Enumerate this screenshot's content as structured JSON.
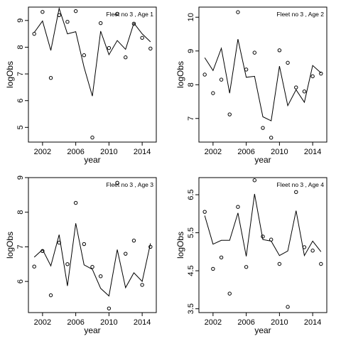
{
  "chart_data": [
    {
      "type": "line",
      "title": "Fleet no 3 , Age 1",
      "xlabel": "year",
      "ylabel": "logObs",
      "xlim": [
        2000.3,
        2015.7
      ],
      "ylim": [
        4.45,
        9.5
      ],
      "xticks": [
        2002,
        2006,
        2010,
        2014
      ],
      "xtick_labels": [
        "2002",
        "2006",
        "2010",
        "2014"
      ],
      "yticks": [
        5,
        6,
        7,
        8,
        9
      ],
      "ytick_labels": [
        "5",
        "6",
        "7",
        "8",
        "9"
      ],
      "x": [
        2001,
        2002,
        2003,
        2004,
        2005,
        2006,
        2007,
        2008,
        2009,
        2010,
        2011,
        2012,
        2013,
        2014,
        2015
      ],
      "series": [
        {
          "role": "fitted",
          "values": [
            8.55,
            8.98,
            7.88,
            9.45,
            8.5,
            8.58,
            7.25,
            6.17,
            8.6,
            7.72,
            8.25,
            7.92,
            8.9,
            8.5,
            8.2
          ]
        },
        {
          "role": "observed",
          "values": [
            8.5,
            9.32,
            6.85,
            9.2,
            8.95,
            9.35,
            7.7,
            4.62,
            8.9,
            7.97,
            9.25,
            7.62,
            8.88,
            8.35,
            7.95
          ]
        }
      ]
    },
    {
      "type": "line",
      "title": "Fleet no 3 , Age 2",
      "xlabel": "year",
      "ylabel": "logObs",
      "xlim": [
        2000.3,
        2015.7
      ],
      "ylim": [
        6.3,
        10.3
      ],
      "xticks": [
        2002,
        2006,
        2010,
        2014
      ],
      "xtick_labels": [
        "2002",
        "2006",
        "2010",
        "2014"
      ],
      "yticks": [
        7,
        8,
        9,
        10
      ],
      "ytick_labels": [
        "7",
        "8",
        "9",
        "10"
      ],
      "x": [
        2001,
        2002,
        2003,
        2004,
        2005,
        2006,
        2007,
        2008,
        2009,
        2010,
        2011,
        2012,
        2013,
        2014,
        2015
      ],
      "series": [
        {
          "role": "fitted",
          "values": [
            8.8,
            8.42,
            9.08,
            7.75,
            9.35,
            8.22,
            8.25,
            7.05,
            6.93,
            8.55,
            7.38,
            7.85,
            7.48,
            8.57,
            8.35
          ]
        },
        {
          "role": "observed",
          "values": [
            8.3,
            7.75,
            8.15,
            7.12,
            10.15,
            8.45,
            8.95,
            6.72,
            6.43,
            9.02,
            8.65,
            7.92,
            7.8,
            8.25,
            8.33
          ]
        }
      ]
    },
    {
      "type": "line",
      "title": "Fleet no 3 , Age 3",
      "xlabel": "year",
      "ylabel": "logObs",
      "xlim": [
        2000.3,
        2015.7
      ],
      "ylim": [
        5.1,
        9.0
      ],
      "xticks": [
        2002,
        2006,
        2010,
        2014
      ],
      "xtick_labels": [
        "2002",
        "2006",
        "2010",
        "2014"
      ],
      "yticks": [
        6,
        7,
        8,
        9
      ],
      "ytick_labels": [
        "6",
        "7",
        "8",
        "9"
      ],
      "x": [
        2001,
        2002,
        2003,
        2004,
        2005,
        2006,
        2007,
        2008,
        2009,
        2010,
        2011,
        2012,
        2013,
        2014,
        2015
      ],
      "series": [
        {
          "role": "fitted",
          "values": [
            6.7,
            6.92,
            6.45,
            7.35,
            5.87,
            7.68,
            6.48,
            6.35,
            5.8,
            5.58,
            6.92,
            5.82,
            6.25,
            6.0,
            7.1
          ]
        },
        {
          "role": "observed",
          "values": [
            6.43,
            6.88,
            5.6,
            7.12,
            6.5,
            8.27,
            7.08,
            6.42,
            6.15,
            5.22,
            8.85,
            6.8,
            7.18,
            5.9,
            7.0
          ]
        }
      ]
    },
    {
      "type": "line",
      "title": "Fleet no 3 , Age 4",
      "xlabel": "year",
      "ylabel": "logObs",
      "xlim": [
        2000.3,
        2015.7
      ],
      "ylim": [
        3.4,
        6.95
      ],
      "xticks": [
        2002,
        2006,
        2010,
        2014
      ],
      "xtick_labels": [
        "2002",
        "2006",
        "2010",
        "2014"
      ],
      "yticks": [
        3.5,
        4.5,
        5.5,
        6.5
      ],
      "ytick_labels": [
        "3.5",
        "4.5",
        "5.5",
        "6.5"
      ],
      "x": [
        2001,
        2002,
        2003,
        2004,
        2005,
        2006,
        2007,
        2008,
        2009,
        2010,
        2011,
        2012,
        2013,
        2014,
        2015
      ],
      "series": [
        {
          "role": "fitted",
          "values": [
            5.95,
            5.2,
            5.3,
            5.3,
            6.02,
            4.88,
            6.52,
            5.32,
            5.28,
            4.9,
            5.02,
            6.08,
            4.9,
            5.28,
            5.0
          ]
        },
        {
          "role": "observed",
          "values": [
            6.05,
            4.55,
            4.85,
            3.9,
            6.18,
            4.6,
            6.88,
            5.4,
            5.32,
            4.68,
            3.55,
            6.57,
            5.12,
            5.03,
            4.68
          ]
        }
      ]
    }
  ]
}
